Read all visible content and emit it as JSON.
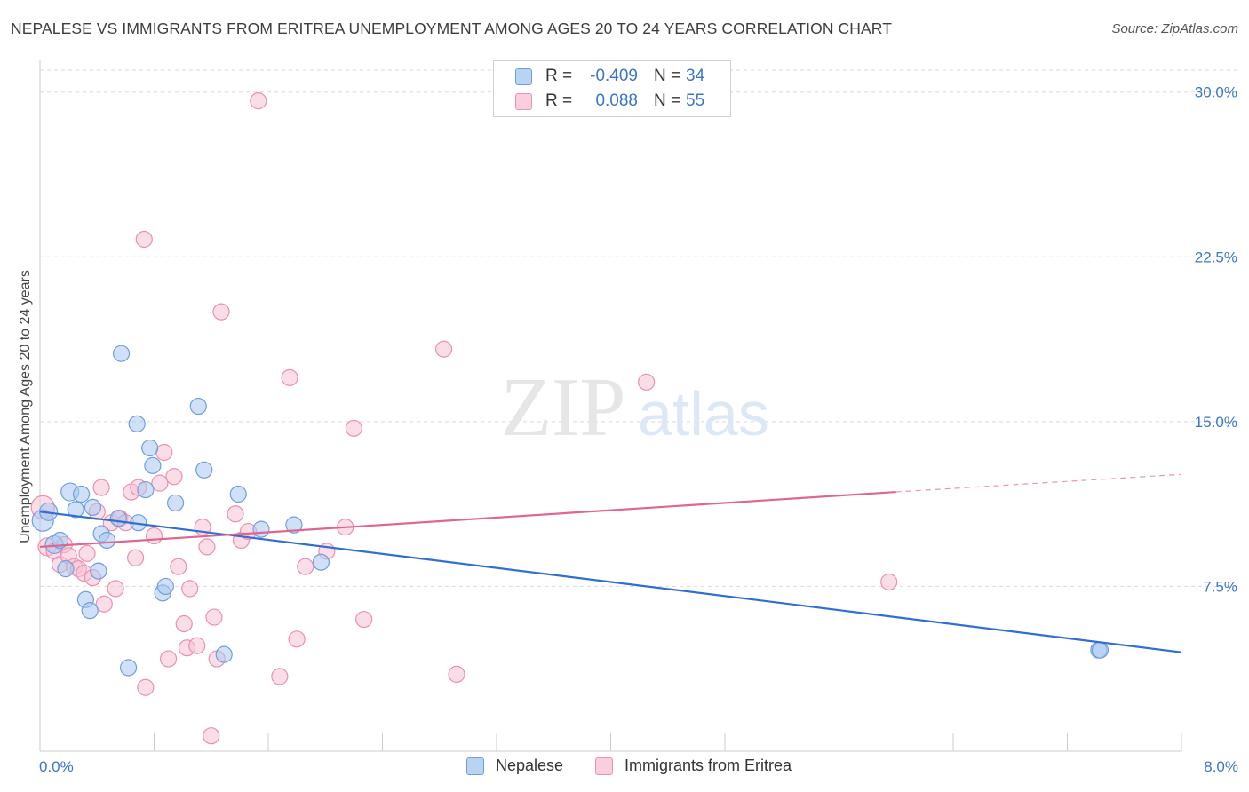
{
  "header": {
    "title": "NEPALESE VS IMMIGRANTS FROM ERITREA UNEMPLOYMENT AMONG AGES 20 TO 24 YEARS CORRELATION CHART",
    "source": "Source: ZipAtlas.com"
  },
  "watermark": {
    "zip": "ZIP",
    "atlas": "atlas"
  },
  "legend_top": {
    "rows": [
      {
        "r_key": "R =",
        "r_value": "-0.409",
        "n_key": "N =",
        "n_value": "34"
      },
      {
        "r_key": "R =",
        "r_value": "0.088",
        "n_key": "N =",
        "n_value": "55"
      }
    ]
  },
  "legend_bottom": {
    "items": [
      {
        "label": "Nepalese"
      },
      {
        "label": "Immigrants from Eritrea"
      }
    ]
  },
  "colors": {
    "nepalese_fill": "#a9c8f0",
    "nepalese_stroke": "#6f9ee0",
    "nepalese_line": "#2f6fd1",
    "eritrea_fill": "#f6c2d4",
    "eritrea_stroke": "#ec8fb0",
    "eritrea_line": "#e0668f",
    "axis_label": "#3b75c9",
    "grid": "#d9d9d9"
  },
  "chart_data": {
    "type": "scatter",
    "title": "NEPALESE VS IMMIGRANTS FROM ERITREA UNEMPLOYMENT AMONG AGES 20 TO 24 YEARS CORRELATION CHART",
    "xlabel": "",
    "ylabel": "Unemployment Among Ages 20 to 24 years",
    "xlim": [
      0,
      8
    ],
    "ylim": [
      0,
      31
    ],
    "x_ticks": [
      0,
      0.8,
      1.6,
      2.4,
      3.2,
      4.0,
      4.8,
      5.6,
      6.4,
      7.2,
      8.0
    ],
    "x_tick_labels": [
      {
        "value": 0,
        "label": "0.0%"
      },
      {
        "value": 8,
        "label": "8.0%"
      }
    ],
    "y_tick_labels": [
      {
        "value": 7.5,
        "label": "7.5%"
      },
      {
        "value": 15.0,
        "label": "15.0%"
      },
      {
        "value": 22.5,
        "label": "22.5%"
      },
      {
        "value": 30.0,
        "label": "30.0%"
      }
    ],
    "grid": true,
    "legend_position": "bottom",
    "series": [
      {
        "name": "Nepalese",
        "stats": {
          "R": -0.409,
          "N": 34
        },
        "trend": {
          "x0": 0,
          "y0": 10.9,
          "x1": 8.0,
          "y1": 4.5
        },
        "points": [
          [
            0.02,
            10.5,
            12
          ],
          [
            0.06,
            10.9,
            10
          ],
          [
            0.1,
            9.4,
            10
          ],
          [
            0.14,
            9.6,
            9
          ],
          [
            0.18,
            8.3,
            9
          ],
          [
            0.21,
            11.8,
            10
          ],
          [
            0.25,
            11.0,
            9
          ],
          [
            0.29,
            11.7,
            9
          ],
          [
            0.32,
            6.9,
            9
          ],
          [
            0.35,
            6.4,
            9
          ],
          [
            0.37,
            11.1,
            9
          ],
          [
            0.41,
            8.2,
            9
          ],
          [
            0.43,
            9.9,
            9
          ],
          [
            0.47,
            9.6,
            9
          ],
          [
            0.55,
            10.6,
            9
          ],
          [
            0.57,
            18.1,
            9
          ],
          [
            0.62,
            3.8,
            9
          ],
          [
            0.68,
            14.9,
            9
          ],
          [
            0.69,
            10.4,
            9
          ],
          [
            0.74,
            11.9,
            9
          ],
          [
            0.77,
            13.8,
            9
          ],
          [
            0.79,
            13.0,
            9
          ],
          [
            0.86,
            7.2,
            9
          ],
          [
            0.88,
            7.5,
            9
          ],
          [
            0.95,
            11.3,
            9
          ],
          [
            1.11,
            15.7,
            9
          ],
          [
            1.15,
            12.8,
            9
          ],
          [
            1.29,
            4.4,
            9
          ],
          [
            1.39,
            11.7,
            9
          ],
          [
            1.55,
            10.1,
            9
          ],
          [
            1.78,
            10.3,
            9
          ],
          [
            1.97,
            8.6,
            9
          ],
          [
            7.42,
            4.6,
            9
          ],
          [
            7.43,
            4.6,
            9
          ]
        ]
      },
      {
        "name": "Immigrants from Eritrea",
        "stats": {
          "R": 0.088,
          "N": 55
        },
        "trend": {
          "x0": 0,
          "y0": 9.3,
          "x1": 6.0,
          "y1": 11.8,
          "x_dash_end": 8.0,
          "y_dash_end": 12.6
        },
        "points": [
          [
            0.02,
            11.1,
            13
          ],
          [
            0.05,
            9.3,
            10
          ],
          [
            0.1,
            9.1,
            9
          ],
          [
            0.14,
            8.5,
            9
          ],
          [
            0.17,
            9.4,
            9
          ],
          [
            0.2,
            8.9,
            9
          ],
          [
            0.24,
            8.4,
            9
          ],
          [
            0.27,
            8.3,
            9
          ],
          [
            0.31,
            8.1,
            9
          ],
          [
            0.33,
            9.0,
            9
          ],
          [
            0.37,
            7.9,
            9
          ],
          [
            0.4,
            10.9,
            9
          ],
          [
            0.43,
            12.0,
            9
          ],
          [
            0.45,
            6.7,
            9
          ],
          [
            0.5,
            10.4,
            9
          ],
          [
            0.53,
            7.4,
            9
          ],
          [
            0.56,
            10.6,
            9
          ],
          [
            0.6,
            10.4,
            9
          ],
          [
            0.64,
            11.8,
            9
          ],
          [
            0.67,
            8.8,
            9
          ],
          [
            0.69,
            12.0,
            9
          ],
          [
            0.73,
            23.3,
            9
          ],
          [
            0.74,
            2.9,
            9
          ],
          [
            0.8,
            9.8,
            9
          ],
          [
            0.84,
            12.2,
            9
          ],
          [
            0.87,
            13.6,
            9
          ],
          [
            0.9,
            4.2,
            9
          ],
          [
            0.94,
            12.5,
            9
          ],
          [
            0.97,
            8.4,
            9
          ],
          [
            1.01,
            5.8,
            9
          ],
          [
            1.03,
            4.7,
            9
          ],
          [
            1.05,
            7.4,
            9
          ],
          [
            1.1,
            4.8,
            9
          ],
          [
            1.14,
            10.2,
            9
          ],
          [
            1.17,
            9.3,
            9
          ],
          [
            1.2,
            0.7,
            9
          ],
          [
            1.22,
            6.1,
            9
          ],
          [
            1.24,
            4.2,
            9
          ],
          [
            1.27,
            20.0,
            9
          ],
          [
            1.37,
            10.8,
            9
          ],
          [
            1.41,
            9.6,
            9
          ],
          [
            1.46,
            10.0,
            9
          ],
          [
            1.53,
            29.6,
            9
          ],
          [
            1.68,
            3.4,
            9
          ],
          [
            1.75,
            17.0,
            9
          ],
          [
            1.8,
            5.1,
            9
          ],
          [
            1.86,
            8.4,
            9
          ],
          [
            2.01,
            9.1,
            9
          ],
          [
            2.14,
            10.2,
            9
          ],
          [
            2.2,
            14.7,
            9
          ],
          [
            2.27,
            6.0,
            9
          ],
          [
            2.83,
            18.3,
            9
          ],
          [
            2.92,
            3.5,
            9
          ],
          [
            4.25,
            16.8,
            9
          ],
          [
            5.95,
            7.7,
            9
          ]
        ]
      }
    ]
  }
}
